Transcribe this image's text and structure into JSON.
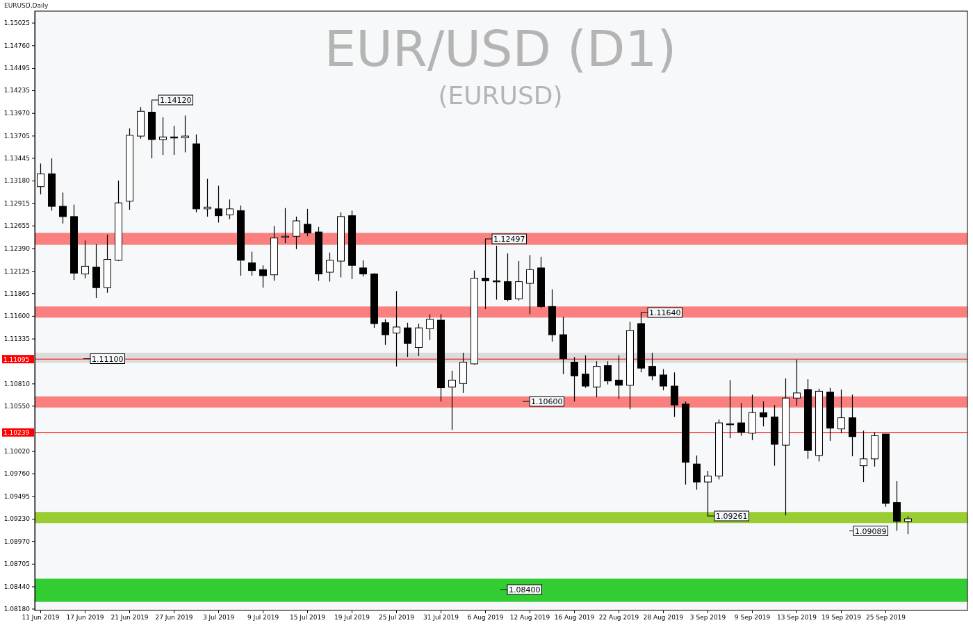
{
  "chart_data": {
    "type": "candlestick",
    "title": "EUR/USD (D1)",
    "subtitle": "(EURUSD)",
    "categories": [
      "11 Jun 2019",
      null,
      null,
      null,
      "17 Jun 2019",
      null,
      null,
      null,
      "21 Jun 2019",
      null,
      null,
      null,
      "27 Jun 2019",
      null,
      null,
      null,
      "3 Jul 2019",
      null,
      null,
      null,
      "9 Jul 2019",
      null,
      null,
      null,
      "15 Jul 2019",
      null,
      null,
      null,
      "19 Jul 2019",
      null,
      null,
      null,
      "25 Jul 2019",
      null,
      null,
      null,
      "31 Jul 2019",
      null,
      null,
      null,
      "6 Aug 2019",
      null,
      null,
      null,
      "12 Aug 2019",
      null,
      null,
      null,
      "16 Aug 2019",
      null,
      null,
      null,
      "22 Aug 2019",
      null,
      null,
      null,
      "28 Aug 2019",
      null,
      null,
      null,
      "3 Sep 2019",
      null,
      null,
      null,
      "9 Sep 2019",
      null,
      null,
      null,
      "13 Sep 2019",
      null,
      null,
      null,
      "19 Sep 2019",
      null,
      null,
      null,
      "25 Sep 2019",
      null,
      null
    ],
    "ohlc": [
      [
        1.1311,
        1.1338,
        1.1302,
        1.1326
      ],
      [
        1.1326,
        1.1344,
        1.1283,
        1.1288
      ],
      [
        1.1288,
        1.1304,
        1.1268,
        1.1276
      ],
      [
        1.1276,
        1.129,
        1.1202,
        1.121
      ],
      [
        1.1209,
        1.1248,
        1.1204,
        1.1218
      ],
      [
        1.1217,
        1.1244,
        1.1181,
        1.1193
      ],
      [
        1.1193,
        1.1255,
        1.1187,
        1.1226
      ],
      [
        1.1225,
        1.1318,
        1.1224,
        1.1292
      ],
      [
        1.1294,
        1.1379,
        1.1284,
        1.1371
      ],
      [
        1.137,
        1.1404,
        1.1367,
        1.1399
      ],
      [
        1.1398,
        1.1412,
        1.1344,
        1.1366
      ],
      [
        1.1366,
        1.1392,
        1.1348,
        1.1369
      ],
      [
        1.1369,
        1.1382,
        1.1348,
        1.1368
      ],
      [
        1.1368,
        1.1394,
        1.1351,
        1.137
      ],
      [
        1.1361,
        1.1372,
        1.1281,
        1.1285
      ],
      [
        1.1285,
        1.132,
        1.1276,
        1.1287
      ],
      [
        1.1285,
        1.1312,
        1.1269,
        1.1277
      ],
      [
        1.1278,
        1.1296,
        1.1273,
        1.1285
      ],
      [
        1.1283,
        1.1289,
        1.1207,
        1.1225
      ],
      [
        1.1222,
        1.1235,
        1.1207,
        1.1213
      ],
      [
        1.1214,
        1.1219,
        1.1193,
        1.1207
      ],
      [
        1.1208,
        1.1265,
        1.1201,
        1.1251
      ],
      [
        1.1253,
        1.1286,
        1.1245,
        1.1253
      ],
      [
        1.1253,
        1.1276,
        1.1238,
        1.1271
      ],
      [
        1.1267,
        1.1285,
        1.1253,
        1.1257
      ],
      [
        1.1258,
        1.1264,
        1.1201,
        1.1209
      ],
      [
        1.1211,
        1.1234,
        1.12,
        1.1225
      ],
      [
        1.1224,
        1.1281,
        1.1205,
        1.1276
      ],
      [
        1.1277,
        1.1283,
        1.1203,
        1.1219
      ],
      [
        1.1216,
        1.1225,
        1.1206,
        1.1209
      ],
      [
        1.1209,
        1.121,
        1.1146,
        1.1151
      ],
      [
        1.1152,
        1.1156,
        1.1126,
        1.1138
      ],
      [
        1.114,
        1.1189,
        1.1101,
        1.1147
      ],
      [
        1.1146,
        1.1152,
        1.1112,
        1.1128
      ],
      [
        1.1123,
        1.1151,
        1.1113,
        1.1146
      ],
      [
        1.1145,
        1.1162,
        1.1132,
        1.1156
      ],
      [
        1.1155,
        1.1162,
        1.106,
        1.1076
      ],
      [
        1.1077,
        1.1096,
        1.1027,
        1.1085
      ],
      [
        1.1081,
        1.1117,
        1.107,
        1.1106
      ],
      [
        1.1104,
        1.1213,
        1.1103,
        1.1204
      ],
      [
        1.1204,
        1.125,
        1.1168,
        1.1201
      ],
      [
        1.1201,
        1.1242,
        1.1179,
        1.12
      ],
      [
        1.12,
        1.1233,
        1.1177,
        1.1179
      ],
      [
        1.118,
        1.1224,
        1.1178,
        1.12
      ],
      [
        1.1198,
        1.1231,
        1.1162,
        1.1214
      ],
      [
        1.1216,
        1.1229,
        1.1169,
        1.1171
      ],
      [
        1.1171,
        1.1191,
        1.113,
        1.1138
      ],
      [
        1.1138,
        1.1159,
        1.1092,
        1.111
      ],
      [
        1.1106,
        1.1112,
        1.106,
        1.109
      ],
      [
        1.1092,
        1.1114,
        1.1076,
        1.1078
      ],
      [
        1.1077,
        1.1107,
        1.1065,
        1.1101
      ],
      [
        1.1102,
        1.1107,
        1.108,
        1.1084
      ],
      [
        1.1085,
        1.1114,
        1.1063,
        1.1079
      ],
      [
        1.1079,
        1.1153,
        1.1051,
        1.1143
      ],
      [
        1.1151,
        1.1164,
        1.1094,
        1.1099
      ],
      [
        1.1101,
        1.1117,
        1.1085,
        1.109
      ],
      [
        1.1091,
        1.1098,
        1.1073,
        1.1078
      ],
      [
        1.1078,
        1.1094,
        1.1042,
        1.1056
      ],
      [
        1.1057,
        1.106,
        1.0963,
        1.0989
      ],
      [
        1.0987,
        1.0997,
        1.0957,
        1.0966
      ],
      [
        1.0966,
        1.0979,
        1.0926,
        1.0973
      ],
      [
        1.0973,
        1.1039,
        1.0969,
        1.1035
      ],
      [
        1.1034,
        1.1085,
        1.1017,
        1.1033
      ],
      [
        1.1035,
        1.1058,
        1.102,
        1.1024
      ],
      [
        1.1023,
        1.1068,
        1.1015,
        1.1047
      ],
      [
        1.1047,
        1.106,
        1.1031,
        1.1042
      ],
      [
        1.1042,
        1.1056,
        1.0985,
        1.101
      ],
      [
        1.1009,
        1.1087,
        1.0927,
        1.1064
      ],
      [
        1.1064,
        1.1109,
        1.1055,
        1.107
      ],
      [
        1.1074,
        1.1086,
        1.0993,
        1.1003
      ],
      [
        1.0997,
        1.1075,
        1.099,
        1.1072
      ],
      [
        1.1071,
        1.1076,
        1.1014,
        1.1029
      ],
      [
        1.1028,
        1.1074,
        1.1023,
        1.1041
      ],
      [
        1.1041,
        1.1068,
        1.0996,
        1.1019
      ],
      [
        1.0985,
        1.1026,
        1.0966,
        1.0993
      ],
      [
        1.0993,
        1.1024,
        1.0984,
        1.102
      ],
      [
        1.1022,
        1.1022,
        1.0937,
        1.0941
      ],
      [
        1.0942,
        1.0967,
        1.0909,
        1.092
      ],
      [
        1.092,
        1.0926,
        1.0905,
        1.0923
      ]
    ],
    "ylim": [
      1.0816,
      1.1516
    ],
    "yticks": [
      1.15025,
      {
        "value": 1.1476,
        "label": "1.14760"
      },
      1.14495,
      1.14235,
      {
        "value": 1.1397,
        "label": "1.13970"
      },
      1.13705,
      1.13445,
      {
        "value": 1.1318,
        "label": "1.13180"
      },
      1.12915,
      1.12655,
      {
        "value": 1.1239,
        "label": "1.12390"
      },
      1.12125,
      1.11865,
      {
        "value": 1.116,
        "label": "1.11600"
      },
      1.11335,
      {
        "value": 1.1081,
        "label": "1.10810"
      },
      {
        "value": 1.1055,
        "label": "1.10550"
      },
      {
        "value": 1.1002,
        "label": "1.10020"
      },
      {
        "value": 1.0976,
        "label": "1.09760"
      },
      1.09495,
      {
        "value": 1.0923,
        "label": "1.09230"
      },
      {
        "value": 1.0897,
        "label": "1.08970"
      },
      1.08705,
      {
        "value": 1.0844,
        "label": "1.08440"
      },
      {
        "value": 1.0818,
        "label": "1.08180"
      }
    ],
    "bands": [
      {
        "axis": "y",
        "from": 1.1243,
        "to": 1.1257,
        "color": "#fa8080"
      },
      {
        "axis": "y",
        "from": 1.1158,
        "to": 1.1171,
        "color": "#fa8080"
      },
      {
        "axis": "y",
        "from": 1.1105,
        "to": 1.1117,
        "color": "#dcdcdc"
      },
      {
        "axis": "y",
        "from": 1.1053,
        "to": 1.1066,
        "color": "#fa8080"
      },
      {
        "axis": "y",
        "from": 1.0918,
        "to": 1.0931,
        "color": "#9acd32"
      },
      {
        "axis": "y",
        "from": 1.0826,
        "to": 1.0853,
        "color": "#32cd32"
      }
    ],
    "ref_lines": [
      {
        "axis": "y",
        "value": 1.11095,
        "label": "1.11095",
        "color": "#ff0000"
      },
      {
        "axis": "y",
        "value": 1.10239,
        "label": "1.10239",
        "color": "#ff0000"
      }
    ],
    "annotations": [
      "EURUSD,Daily",
      "1.14120",
      "1.12497",
      "1.11640",
      "1.11100",
      "1.10600",
      "1.09261",
      "1.09089",
      "1.08400"
    ]
  }
}
